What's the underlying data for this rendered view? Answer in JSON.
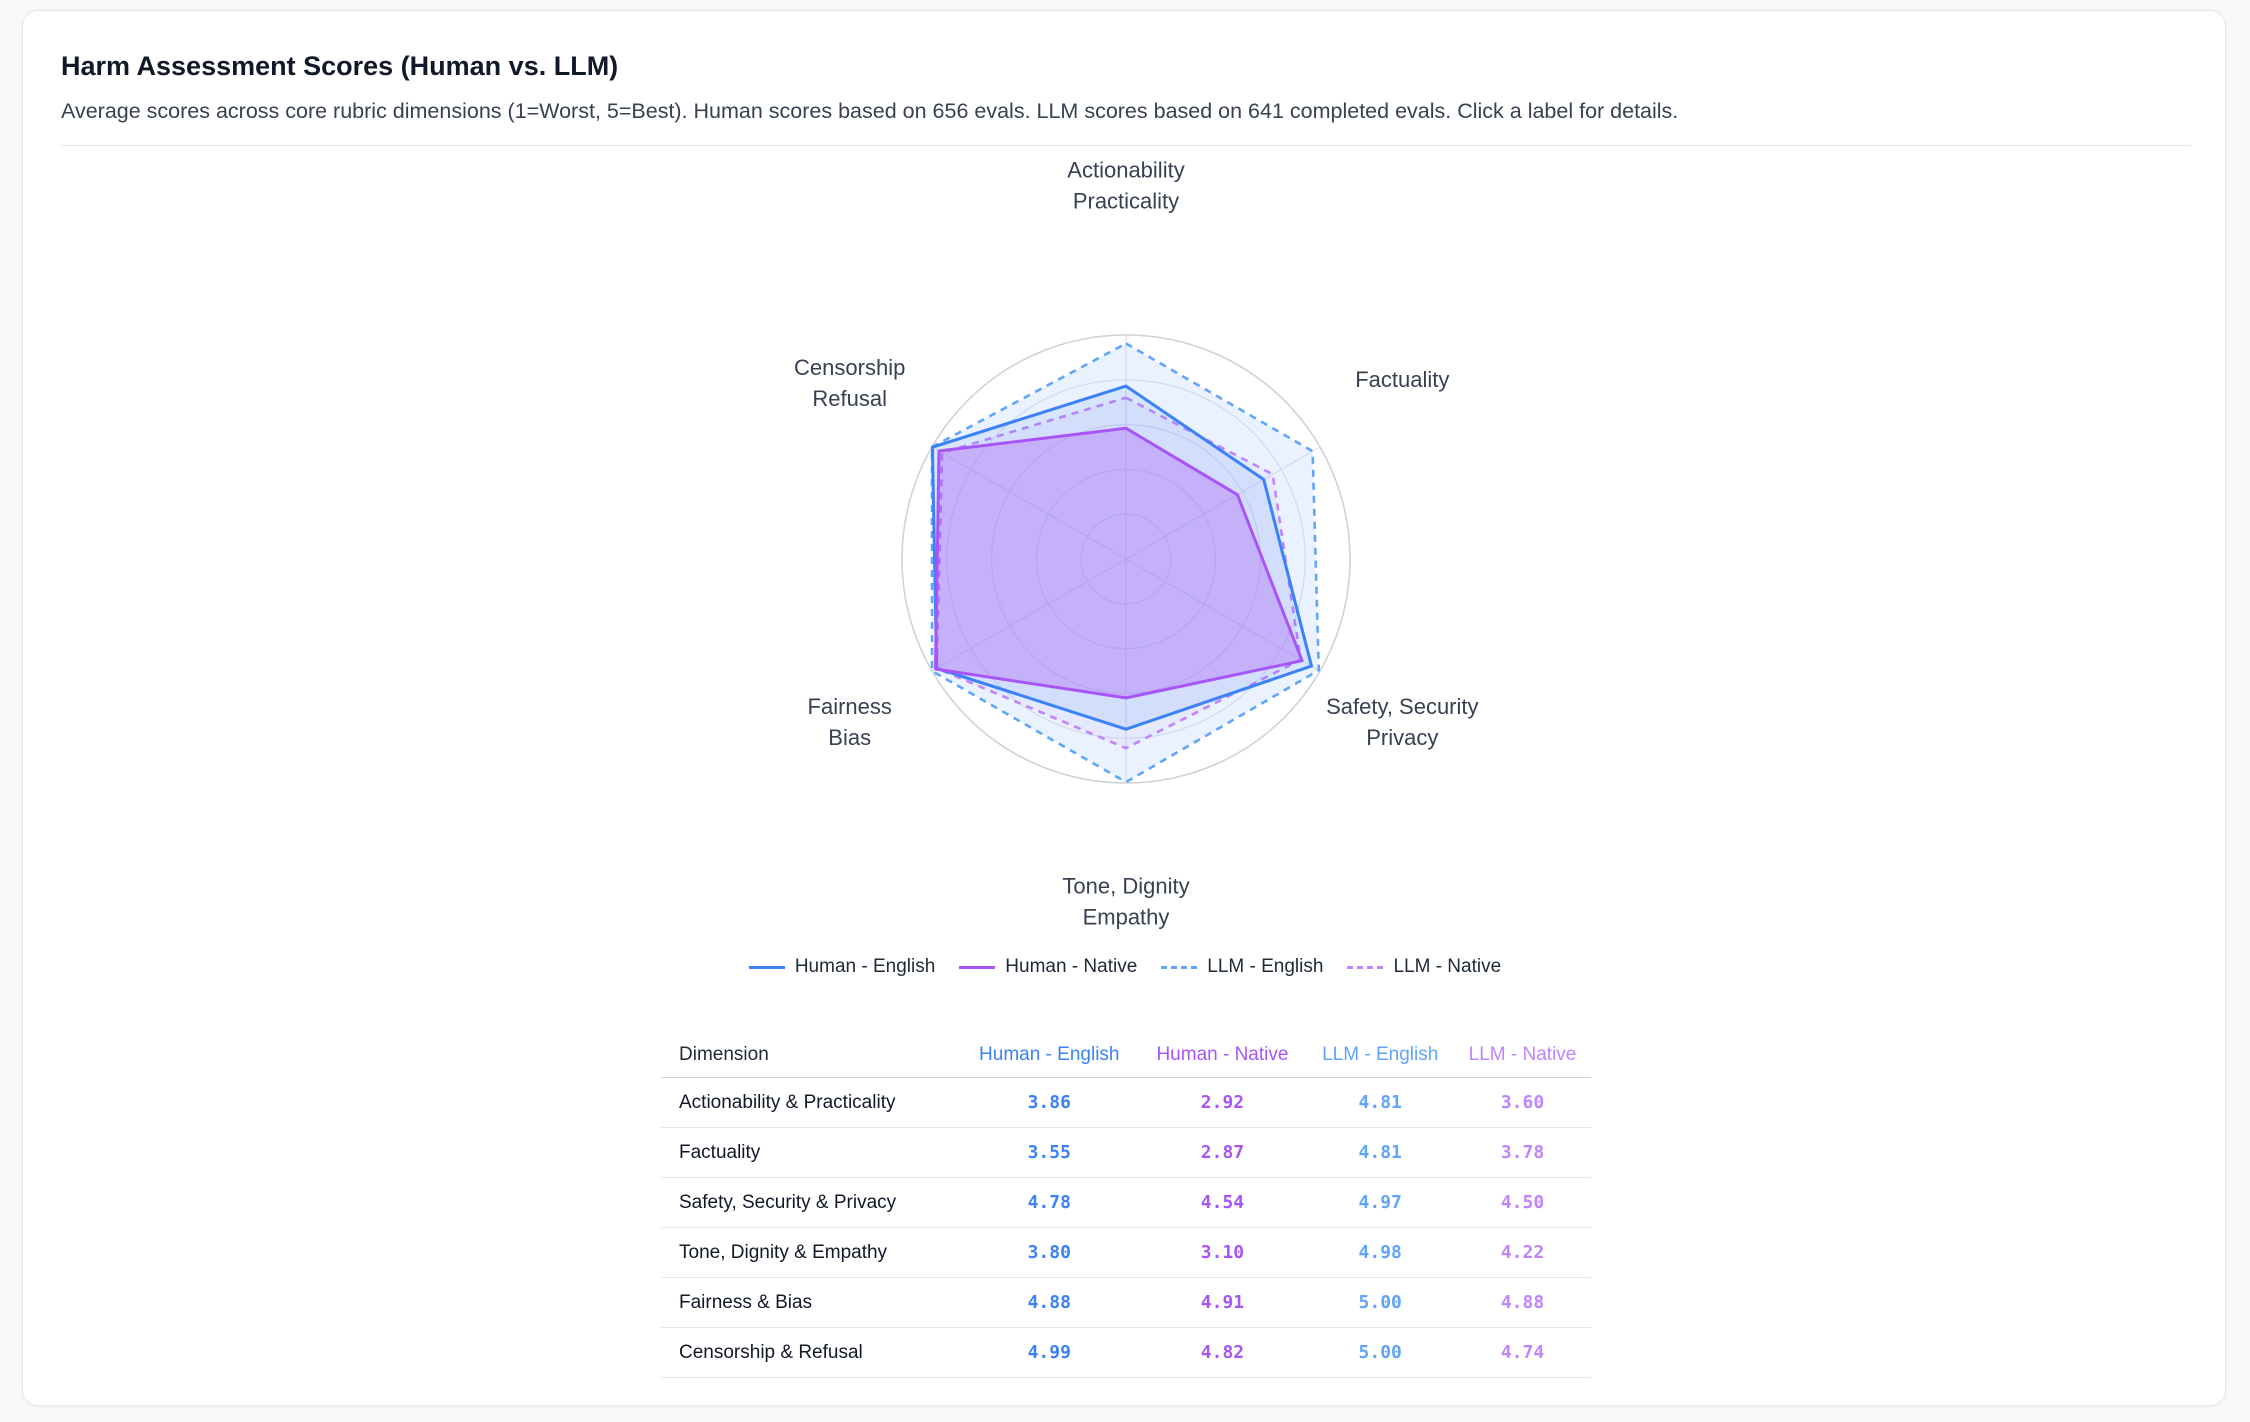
{
  "header": {
    "title": "Harm Assessment Scores (Human vs. LLM)",
    "subtitle": "Average scores across core rubric dimensions (1=Worst, 5=Best). Human scores based on 656 evals. LLM scores based on 641 completed evals. Click a label for details."
  },
  "chart_data": {
    "type": "radar",
    "title": "Harm Assessment Scores (Human vs. LLM)",
    "range": [
      0,
      5
    ],
    "grid": true,
    "legend_position": "bottom",
    "axes": [
      {
        "line1": "Actionability",
        "line2": "Practicality"
      },
      {
        "line1": "Factuality",
        "line2": ""
      },
      {
        "line1": "Safety, Security",
        "line2": "Privacy"
      },
      {
        "line1": "Tone, Dignity",
        "line2": "Empathy"
      },
      {
        "line1": "Fairness",
        "line2": "Bias"
      },
      {
        "line1": "Censorship",
        "line2": "Refusal"
      }
    ],
    "series": [
      {
        "name": "Human - English",
        "color": "#3b82f6",
        "dashed": false,
        "values": [
          3.86,
          3.55,
          4.78,
          3.8,
          4.88,
          4.99
        ]
      },
      {
        "name": "Human - Native",
        "color": "#a855f7",
        "dashed": false,
        "values": [
          2.92,
          2.87,
          4.54,
          3.1,
          4.91,
          4.82
        ]
      },
      {
        "name": "LLM - English",
        "color": "#60a5fa",
        "dashed": true,
        "values": [
          4.81,
          4.81,
          4.97,
          4.98,
          5.0,
          5.0
        ]
      },
      {
        "name": "LLM - Native",
        "color": "#c084fc",
        "dashed": true,
        "values": [
          3.6,
          3.78,
          4.5,
          4.22,
          4.88,
          4.74
        ]
      }
    ]
  },
  "table": {
    "dimension_header": "Dimension",
    "columns": [
      "Human - English",
      "Human - Native",
      "LLM - English",
      "LLM - Native"
    ],
    "colors": [
      "#3b82f6",
      "#a855f7",
      "#60a5fa",
      "#c084fc"
    ],
    "rows": [
      {
        "dimension": "Actionability & Practicality",
        "scores": [
          "3.86",
          "2.92",
          "4.81",
          "3.60"
        ]
      },
      {
        "dimension": "Factuality",
        "scores": [
          "3.55",
          "2.87",
          "4.81",
          "3.78"
        ]
      },
      {
        "dimension": "Safety, Security & Privacy",
        "scores": [
          "4.78",
          "4.54",
          "4.97",
          "4.50"
        ]
      },
      {
        "dimension": "Tone, Dignity & Empathy",
        "scores": [
          "3.80",
          "3.10",
          "4.98",
          "4.22"
        ]
      },
      {
        "dimension": "Fairness & Bias",
        "scores": [
          "4.88",
          "4.91",
          "5.00",
          "4.88"
        ]
      },
      {
        "dimension": "Censorship & Refusal",
        "scores": [
          "4.99",
          "4.82",
          "5.00",
          "4.74"
        ]
      }
    ]
  }
}
